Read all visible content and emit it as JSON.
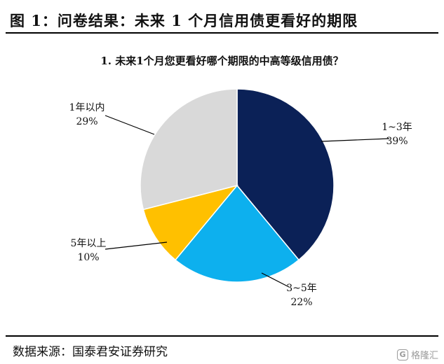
{
  "figure": {
    "title": "图 1：问卷结果：未来 1 个月信用债更看好的期限"
  },
  "chart_data": {
    "type": "pie",
    "title": "1. 未来1个月您更看好哪个期限的中高等级信用债？",
    "start": "12 o'clock",
    "direction": "clockwise",
    "slices": [
      {
        "label": "1~3年",
        "value": 39,
        "value_label": "39%",
        "color": "#0b2157"
      },
      {
        "label": "3~5年",
        "value": 22,
        "value_label": "22%",
        "color": "#0db0ee"
      },
      {
        "label": "5年以上",
        "value": 10,
        "value_label": "10%",
        "color": "#ffc000"
      },
      {
        "label": "1年以内",
        "value": 29,
        "value_label": "29%",
        "color": "#d9d9d9"
      }
    ]
  },
  "source": "数据来源：国泰君安证券研究",
  "watermark": {
    "logo": "G",
    "text": "格隆汇"
  }
}
